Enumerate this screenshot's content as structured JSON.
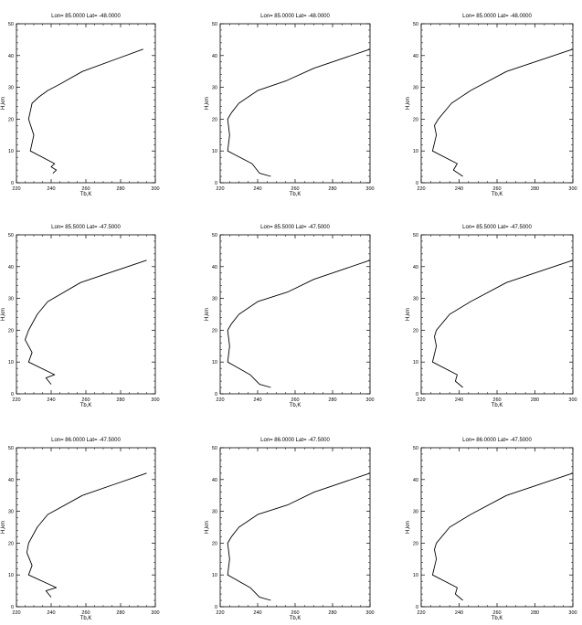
{
  "figure": {
    "title_template": "Lon=   {lon} Lat=   {lat}"
  },
  "chart_data": [
    {
      "type": "line",
      "title": "Lon=   85.0000 Lat=   -48.0000",
      "xlabel": "Tb,K",
      "ylabel": "H,km",
      "xlim": [
        220,
        300
      ],
      "ylim": [
        0,
        50
      ],
      "xticks": [
        220,
        240,
        260,
        280,
        300
      ],
      "yticks": [
        0,
        10,
        20,
        30,
        40,
        50
      ],
      "series": [
        {
          "x": [
            241,
            243,
            240,
            242,
            228,
            230,
            227,
            229,
            233,
            238,
            245,
            258,
            293
          ],
          "y": [
            3,
            4,
            5,
            6,
            10,
            15,
            20,
            25,
            27,
            29,
            31,
            35,
            42
          ]
        }
      ]
    },
    {
      "type": "line",
      "title": "Lon=   85.0000 Lat=   -48.0000",
      "xlabel": "Tb,K",
      "ylabel": "H,km",
      "xlim": [
        220,
        300
      ],
      "ylim": [
        0,
        50
      ],
      "xticks": [
        220,
        240,
        260,
        280,
        300
      ],
      "yticks": [
        0,
        10,
        20,
        30,
        40,
        50
      ],
      "series": [
        {
          "x": [
            247,
            241,
            237,
            224,
            225,
            224,
            226,
            230,
            240,
            255,
            270,
            300
          ],
          "y": [
            2,
            3,
            6,
            10,
            15,
            20,
            22,
            25,
            29,
            32,
            36,
            42
          ]
        }
      ]
    },
    {
      "type": "line",
      "title": "Lon=   85.0000 Lat=   -48.0000",
      "xlabel": "Tb,K",
      "ylabel": "H,km",
      "xlim": [
        220,
        300
      ],
      "ylim": [
        0,
        50
      ],
      "xticks": [
        220,
        240,
        260,
        280,
        300
      ],
      "yticks": [
        0,
        10,
        20,
        30,
        40,
        50
      ],
      "series": [
        {
          "x": [
            242,
            237,
            239,
            226,
            228,
            227,
            229,
            236,
            246,
            265,
            300
          ],
          "y": [
            2,
            4,
            6,
            10,
            15,
            18,
            20,
            25,
            29,
            35,
            42
          ]
        }
      ]
    },
    {
      "type": "line",
      "title": "Lon=   85.5000 Lat=   -47.5000",
      "xlabel": "Tb,K",
      "ylabel": "H,km",
      "xlim": [
        220,
        300
      ],
      "ylim": [
        0,
        50
      ],
      "xticks": [
        220,
        240,
        260,
        280,
        300
      ],
      "yticks": [
        0,
        10,
        20,
        30,
        40,
        50
      ],
      "series": [
        {
          "x": [
            240,
            237,
            242,
            227,
            229,
            225,
            227,
            232,
            238,
            257,
            295
          ],
          "y": [
            3,
            5,
            6,
            10,
            13,
            17,
            20,
            25,
            29,
            35,
            42
          ]
        }
      ]
    },
    {
      "type": "line",
      "title": "Lon=   85.5000 Lat=   -47.5000",
      "xlabel": "Tb,K",
      "ylabel": "H,km",
      "xlim": [
        220,
        300
      ],
      "ylim": [
        0,
        50
      ],
      "xticks": [
        220,
        240,
        260,
        280,
        300
      ],
      "yticks": [
        0,
        10,
        20,
        30,
        40,
        50
      ],
      "series": [
        {
          "x": [
            247,
            241,
            236,
            224,
            225,
            224,
            226,
            230,
            240,
            256,
            270,
            300
          ],
          "y": [
            2,
            3,
            6,
            10,
            15,
            20,
            22,
            25,
            29,
            32,
            36,
            42
          ]
        }
      ]
    },
    {
      "type": "line",
      "title": "Lon=   85.5000 Lat=   -47.5000",
      "xlabel": "Tb,K",
      "ylabel": "H,km",
      "xlim": [
        220,
        300
      ],
      "ylim": [
        0,
        50
      ],
      "xticks": [
        220,
        240,
        260,
        280,
        300
      ],
      "yticks": [
        0,
        10,
        20,
        30,
        40,
        50
      ],
      "series": [
        {
          "x": [
            242,
            238,
            239,
            226,
            228,
            227,
            228,
            235,
            246,
            265,
            300
          ],
          "y": [
            2,
            4,
            6,
            10,
            15,
            18,
            20,
            25,
            29,
            35,
            42
          ]
        }
      ]
    },
    {
      "type": "line",
      "title": "Lon=   86.0000 Lat=   -47.5000",
      "xlabel": "Tb,K",
      "ylabel": "H,km",
      "xlim": [
        220,
        300
      ],
      "ylim": [
        0,
        50
      ],
      "xticks": [
        220,
        240,
        260,
        280,
        300
      ],
      "yticks": [
        0,
        10,
        20,
        30,
        40,
        50
      ],
      "series": [
        {
          "x": [
            240,
            237,
            243,
            227,
            229,
            226,
            227,
            232,
            238,
            258,
            295
          ],
          "y": [
            3,
            5,
            6,
            10,
            13,
            17,
            20,
            25,
            29,
            35,
            42
          ]
        }
      ]
    },
    {
      "type": "line",
      "title": "Lon=   86.0000 Lat=   -47.5000",
      "xlabel": "Tb,K",
      "ylabel": "H,km",
      "xlim": [
        220,
        300
      ],
      "ylim": [
        0,
        50
      ],
      "xticks": [
        220,
        240,
        260,
        280,
        300
      ],
      "yticks": [
        0,
        10,
        20,
        30,
        40,
        50
      ],
      "series": [
        {
          "x": [
            247,
            241,
            236,
            224,
            225,
            224,
            226,
            230,
            240,
            256,
            270,
            300
          ],
          "y": [
            2,
            3,
            6,
            10,
            15,
            20,
            22,
            25,
            29,
            32,
            36,
            42
          ]
        }
      ]
    },
    {
      "type": "line",
      "title": "Lon=   86.0000 Lat=   -47.5000",
      "xlabel": "Tb,K",
      "ylabel": "H,km",
      "xlim": [
        220,
        300
      ],
      "ylim": [
        0,
        50
      ],
      "xticks": [
        220,
        240,
        260,
        280,
        300
      ],
      "yticks": [
        0,
        10,
        20,
        30,
        40,
        50
      ],
      "series": [
        {
          "x": [
            242,
            238,
            239,
            226,
            228,
            227,
            228,
            235,
            246,
            265,
            300
          ],
          "y": [
            2,
            4,
            6,
            10,
            15,
            18,
            20,
            25,
            29,
            35,
            42
          ]
        }
      ]
    }
  ]
}
